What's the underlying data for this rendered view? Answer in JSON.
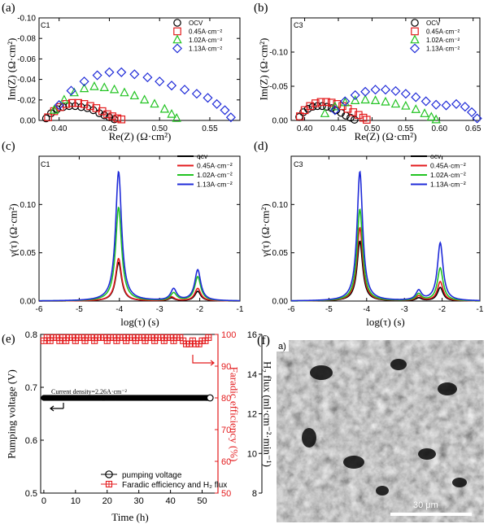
{
  "chart_data": [
    {
      "id": "a",
      "panel_label": "(a)",
      "inset_label": "C1",
      "type": "scatter",
      "title": "",
      "xlabel": "Re(Z) (Ω·cm²)",
      "ylabel": "Im(Z) (Ω·cm²)",
      "xlim": [
        0.38,
        0.58
      ],
      "ylim": [
        -0.1,
        0.0
      ],
      "y_reversed": true,
      "xticks": [
        0.4,
        0.45,
        0.5,
        0.55
      ],
      "yticks": [
        -0.1,
        -0.08,
        -0.06,
        -0.04,
        -0.02,
        0.0
      ],
      "xtick_labels": [
        "0.40",
        "0.45",
        "0.50",
        "0.55"
      ],
      "ytick_labels": [
        "-0.10",
        "-0.08",
        "-0.06",
        "-0.04",
        "-0.02",
        "0.00"
      ],
      "series": [
        {
          "name": "OCV",
          "color": "#000000",
          "marker": "circle",
          "x": [
            0.387,
            0.392,
            0.398,
            0.404,
            0.41,
            0.416,
            0.422,
            0.428,
            0.434,
            0.44,
            0.445,
            0.45,
            0.455
          ],
          "y": [
            -0.002,
            -0.007,
            -0.011,
            -0.013,
            -0.014,
            -0.014,
            -0.013,
            -0.012,
            -0.01,
            -0.007,
            -0.005,
            -0.003,
            -0.001
          ]
        },
        {
          "name": "0.45A·cm⁻²",
          "color": "#e31a1c",
          "marker": "square",
          "x": [
            0.389,
            0.395,
            0.401,
            0.407,
            0.413,
            0.419,
            0.425,
            0.431,
            0.437,
            0.443,
            0.448,
            0.453,
            0.458,
            0.462
          ],
          "y": [
            -0.003,
            -0.009,
            -0.013,
            -0.016,
            -0.017,
            -0.017,
            -0.016,
            -0.014,
            -0.012,
            -0.009,
            -0.006,
            -0.004,
            -0.002,
            -0.001
          ]
        },
        {
          "name": "1.02A·cm⁻²",
          "color": "#22c322",
          "marker": "triangle",
          "x": [
            0.395,
            0.405,
            0.415,
            0.425,
            0.435,
            0.445,
            0.455,
            0.465,
            0.475,
            0.485,
            0.495,
            0.505,
            0.512,
            0.517
          ],
          "y": [
            -0.01,
            -0.02,
            -0.027,
            -0.031,
            -0.033,
            -0.032,
            -0.03,
            -0.027,
            -0.024,
            -0.02,
            -0.016,
            -0.011,
            -0.006,
            -0.002
          ]
        },
        {
          "name": "1.13A·cm⁻²",
          "color": "#1f2bd8",
          "marker": "diamond",
          "x": [
            0.4,
            0.412,
            0.425,
            0.438,
            0.45,
            0.462,
            0.475,
            0.488,
            0.5,
            0.512,
            0.525,
            0.537,
            0.548,
            0.557,
            0.565,
            0.571
          ],
          "y": [
            -0.015,
            -0.029,
            -0.038,
            -0.044,
            -0.047,
            -0.047,
            -0.045,
            -0.042,
            -0.038,
            -0.034,
            -0.03,
            -0.026,
            -0.022,
            -0.016,
            -0.01,
            -0.003
          ]
        }
      ]
    },
    {
      "id": "b",
      "panel_label": "(b)",
      "inset_label": "C3",
      "type": "scatter",
      "title": "",
      "xlabel": "Re(Z) (Ω·cm²)",
      "ylabel": "Im(Z) (Ω·cm²)",
      "xlim": [
        0.38,
        0.66
      ],
      "ylim": [
        -0.15,
        0.0
      ],
      "y_reversed": true,
      "xticks": [
        0.4,
        0.45,
        0.5,
        0.55,
        0.6,
        0.65
      ],
      "yticks": [
        -0.15,
        -0.1,
        -0.05,
        0.0
      ],
      "xtick_labels": [
        "0.40",
        "0.45",
        "0.50",
        "0.55",
        "0.60",
        "0.65"
      ],
      "ytick_labels": [
        "",
        "-0.10",
        "-0.05",
        "0.00"
      ],
      "series": [
        {
          "name": "OCV",
          "color": "#000000",
          "marker": "circle",
          "x": [
            0.392,
            0.398,
            0.405,
            0.412,
            0.419,
            0.426,
            0.433,
            0.44,
            0.447,
            0.454,
            0.461,
            0.468,
            0.474
          ],
          "y": [
            -0.005,
            -0.012,
            -0.017,
            -0.02,
            -0.021,
            -0.021,
            -0.02,
            -0.018,
            -0.015,
            -0.011,
            -0.007,
            -0.004,
            -0.001
          ]
        },
        {
          "name": "0.45A·cm⁻²",
          "color": "#e31a1c",
          "marker": "square",
          "x": [
            0.393,
            0.4,
            0.408,
            0.416,
            0.424,
            0.432,
            0.44,
            0.448,
            0.456,
            0.464,
            0.472,
            0.48,
            0.487,
            0.492
          ],
          "y": [
            -0.006,
            -0.015,
            -0.021,
            -0.025,
            -0.027,
            -0.027,
            -0.026,
            -0.024,
            -0.021,
            -0.017,
            -0.012,
            -0.008,
            -0.004,
            -0.001
          ]
        },
        {
          "name": "1.02A·cm⁻²",
          "color": "#22c322",
          "marker": "triangle",
          "x": [
            0.43,
            0.445,
            0.46,
            0.475,
            0.49,
            0.505,
            0.52,
            0.535,
            0.55,
            0.565,
            0.578,
            0.588,
            0.595
          ],
          "y": [
            -0.01,
            -0.02,
            -0.026,
            -0.029,
            -0.03,
            -0.029,
            -0.027,
            -0.024,
            -0.021,
            -0.016,
            -0.01,
            -0.005,
            -0.001
          ]
        },
        {
          "name": "1.13A·cm⁻²",
          "color": "#1f2bd8",
          "marker": "diamond",
          "x": [
            0.445,
            0.46,
            0.475,
            0.49,
            0.505,
            0.52,
            0.535,
            0.55,
            0.565,
            0.58,
            0.595,
            0.61,
            0.625,
            0.638,
            0.648,
            0.656
          ],
          "y": [
            -0.015,
            -0.028,
            -0.037,
            -0.042,
            -0.045,
            -0.045,
            -0.043,
            -0.039,
            -0.034,
            -0.028,
            -0.023,
            -0.022,
            -0.024,
            -0.02,
            -0.012,
            -0.003
          ]
        }
      ]
    },
    {
      "id": "c",
      "panel_label": "(c)",
      "inset_label": "C1",
      "type": "line",
      "title": "",
      "xlabel": "log(τ) (s)",
      "ylabel": "γ(τ) (Ω·cm²)",
      "xlim": [
        -6,
        -1
      ],
      "ylim": [
        0,
        0.15
      ],
      "xticks": [
        -6,
        -5,
        -4,
        -3,
        -2,
        -1
      ],
      "yticks": [
        0.0,
        0.05,
        0.1
      ],
      "xtick_labels": [
        "-6",
        "-5",
        "-4",
        "-3",
        "-2",
        "-1"
      ],
      "ytick_labels": [
        "0.00",
        "0.05",
        "0.10"
      ],
      "peak_width": 0.09,
      "series": [
        {
          "name": "ocv",
          "color": "#000000",
          "peaks": [
            [
              -4.02,
              0.04
            ],
            [
              -2.7,
              0.003
            ],
            [
              -2.05,
              0.01
            ]
          ]
        },
        {
          "name": "0.45A·cm⁻²",
          "color": "#e31a1c",
          "peaks": [
            [
              -4.02,
              0.044
            ],
            [
              -2.7,
              0.004
            ],
            [
              -2.05,
              0.013
            ]
          ]
        },
        {
          "name": "1.02A·cm⁻²",
          "color": "#22c322",
          "peaks": [
            [
              -4.02,
              0.097
            ],
            [
              -2.65,
              0.008
            ],
            [
              -2.05,
              0.025
            ]
          ]
        },
        {
          "name": "1.13A·cm⁻²",
          "color": "#1f2bd8",
          "peaks": [
            [
              -4.02,
              0.134
            ],
            [
              -2.65,
              0.012
            ],
            [
              -2.05,
              0.032
            ]
          ]
        }
      ]
    },
    {
      "id": "d",
      "panel_label": "(d)",
      "inset_label": "C3",
      "type": "line",
      "title": "",
      "xlabel": "log(τ) (s)",
      "ylabel": "γ(τ) (Ω·cm²)",
      "xlim": [
        -6,
        -1
      ],
      "ylim": [
        0,
        0.15
      ],
      "xticks": [
        -6,
        -5,
        -4,
        -3,
        -2,
        -1
      ],
      "yticks": [
        0.0,
        0.05,
        0.1
      ],
      "xtick_labels": [
        "-6",
        "-5",
        "-4",
        "-3",
        "-2",
        "-1"
      ],
      "ytick_labels": [
        "0.00",
        "0.05",
        "0.10"
      ],
      "peak_width": 0.09,
      "series": [
        {
          "name": "ocv",
          "color": "#000000",
          "peaks": [
            [
              -4.18,
              0.062
            ],
            [
              -2.62,
              0.003
            ],
            [
              -2.05,
              0.014
            ]
          ]
        },
        {
          "name": "0.45A·cm⁻²",
          "color": "#e31a1c",
          "peaks": [
            [
              -4.18,
              0.076
            ],
            [
              -2.62,
              0.005
            ],
            [
              -2.05,
              0.02
            ]
          ]
        },
        {
          "name": "1.02A·cm⁻²",
          "color": "#22c322",
          "peaks": [
            [
              -4.18,
              0.095
            ],
            [
              -2.62,
              0.007
            ],
            [
              -2.05,
              0.034
            ]
          ]
        },
        {
          "name": "1.13A·cm⁻²",
          "color": "#1f2bd8",
          "peaks": [
            [
              -4.18,
              0.134
            ],
            [
              -2.62,
              0.01
            ],
            [
              -2.05,
              0.06
            ]
          ]
        }
      ]
    },
    {
      "id": "e",
      "panel_label": "(e)",
      "type": "scatter",
      "title": "",
      "xlabel": "Time (h)",
      "ylabel_left": "Pumping voltage (V)",
      "ylabel_right1": "Faradic efficiency (%)",
      "ylabel_right2": "H₂ flux (ml·cm⁻²·min⁻¹)",
      "xlim": [
        -1,
        55
      ],
      "ylim_left": [
        0.5,
        0.8
      ],
      "ylim_right1": [
        50,
        100
      ],
      "ylim_right2": [
        8,
        16
      ],
      "xticks": [
        0,
        10,
        20,
        30,
        40,
        50
      ],
      "yticks_left": [
        0.5,
        0.6,
        0.7,
        0.8
      ],
      "yticks_right1": [
        50,
        60,
        70,
        80,
        90,
        100
      ],
      "yticks_right2": [
        8,
        10,
        12,
        14,
        16
      ],
      "xtick_labels": [
        "0",
        "10",
        "20",
        "30",
        "40",
        "50"
      ],
      "ytick_labels_left": [
        "0.5",
        "0.6",
        "0.7",
        "0.8"
      ],
      "ytick_labels_right1": [
        "50",
        "60",
        "70",
        "80",
        "90",
        "100"
      ],
      "ytick_labels_right2": [
        "8",
        "10",
        "12",
        "14",
        "16"
      ],
      "annotation": "Current density=2.26A·cm⁻²",
      "series": [
        {
          "name": "pumping voltage",
          "color": "#000000",
          "marker": "circle",
          "axis": "left",
          "x_start": 0,
          "x_end": 52.5,
          "x_step": 0.25,
          "value": 0.68
        },
        {
          "name": "Faradic efficiency and H₂ flux",
          "color": "#e31a1c",
          "marker": "square-plus",
          "axis": "right1",
          "x": [
            0,
            1,
            2,
            3,
            4,
            5,
            6,
            7,
            8,
            9,
            10,
            11,
            12,
            13,
            14,
            15,
            16,
            17,
            18,
            19,
            20,
            21,
            22,
            23,
            24,
            25,
            26,
            27,
            28,
            29,
            30,
            31,
            32,
            33,
            34,
            35,
            36,
            37,
            38,
            39,
            40,
            41,
            42,
            43,
            44,
            45,
            46,
            47,
            48,
            49,
            50,
            51,
            52
          ],
          "y": [
            98,
            99,
            98,
            99,
            99,
            98,
            99,
            98,
            99,
            99,
            98,
            99,
            99,
            98,
            99,
            99,
            98,
            99,
            99,
            99,
            98,
            99,
            99,
            98,
            99,
            99,
            98,
            99,
            99,
            98,
            99,
            99,
            98,
            99,
            99,
            98,
            99,
            99,
            98,
            99,
            99,
            98,
            99,
            99,
            98,
            97,
            97,
            98,
            97,
            97,
            98,
            98,
            99
          ]
        }
      ]
    }
  ],
  "sem_image": {
    "panel_label": "(f)",
    "corner_label": "a)",
    "scale_bar_label": "30 μm"
  }
}
